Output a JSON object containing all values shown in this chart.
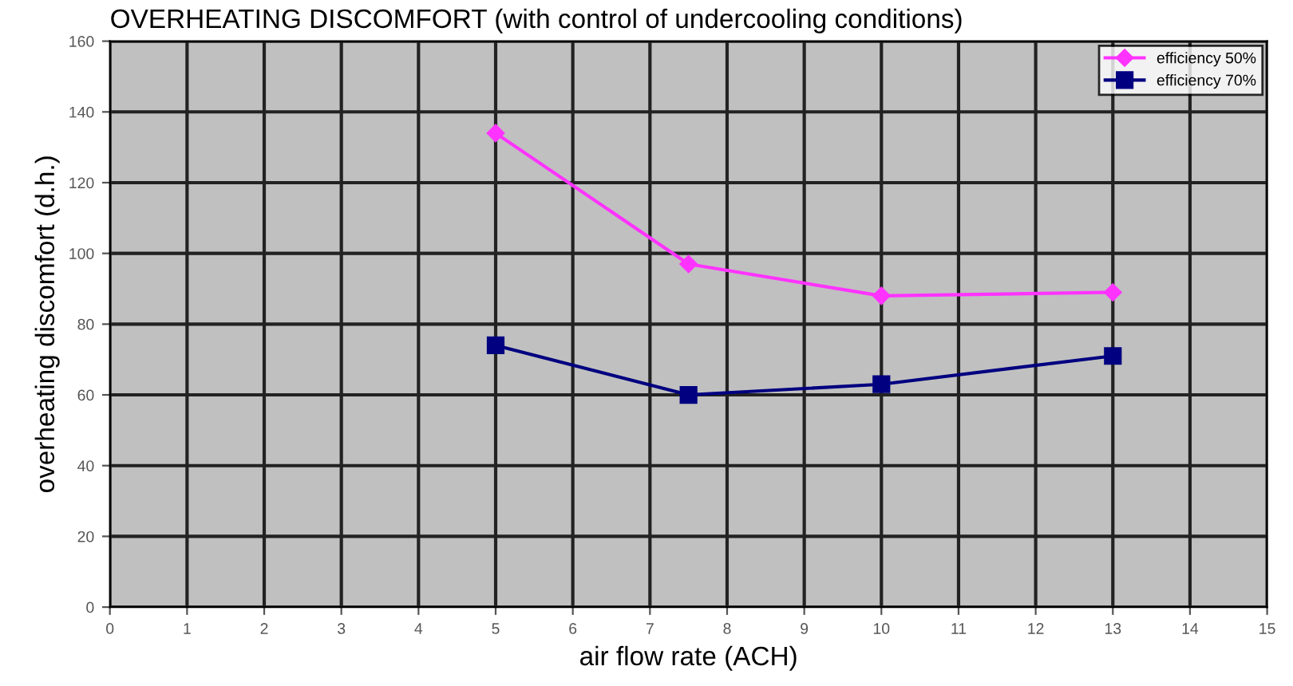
{
  "chart_data": {
    "type": "line",
    "title": "OVERHEATING DISCOMFORT (with control of undercooling conditions)",
    "xlabel": "air flow rate (ACH)",
    "ylabel": "overheating discomfort (d.h.)",
    "x": [
      5,
      7.5,
      10,
      13
    ],
    "series": [
      {
        "name": "efficiency 50%",
        "color": "#ff33ff",
        "marker": "diamond",
        "values": [
          134,
          97,
          88,
          89
        ]
      },
      {
        "name": "efficiency 70%",
        "color": "#000080",
        "marker": "square",
        "values": [
          74,
          60,
          63,
          71
        ]
      }
    ],
    "xlim": [
      0,
      15
    ],
    "xticks": [
      0,
      1,
      2,
      3,
      4,
      5,
      6,
      7,
      8,
      9,
      10,
      11,
      12,
      13,
      14,
      15
    ],
    "ylim": [
      0,
      160
    ],
    "yticks": [
      0,
      20,
      40,
      60,
      80,
      100,
      120,
      140,
      160
    ],
    "grid": true,
    "legend": "top right",
    "line_style": "solid"
  }
}
